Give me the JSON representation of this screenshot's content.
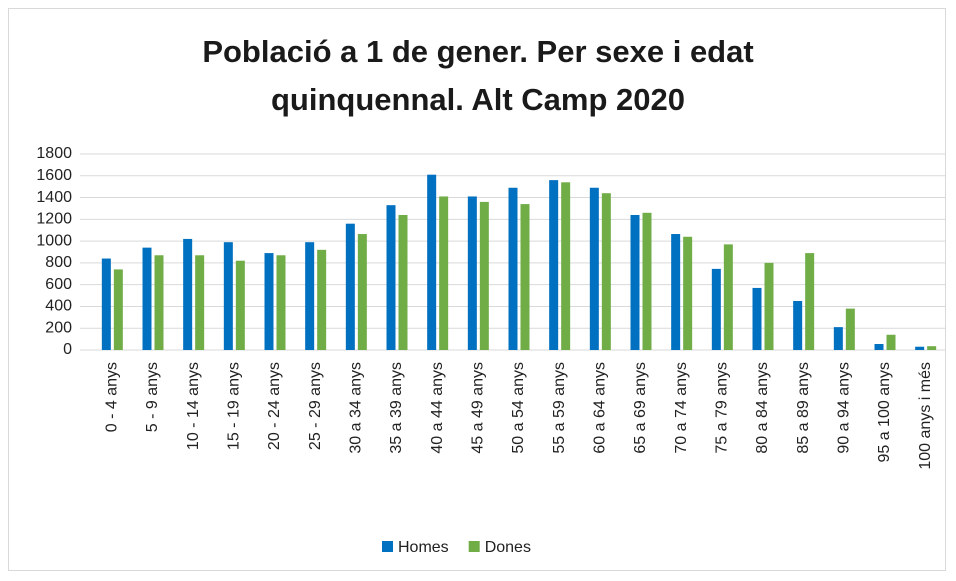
{
  "chart_data": {
    "type": "bar",
    "title": "Població a 1 de gener. Per sexe i edat quinquennal. Alt Camp 2020",
    "categories": [
      "0 - 4 anys",
      "5 - 9 anys",
      "10 - 14 anys",
      "15 - 19 anys",
      "20 - 24 anys",
      "25 - 29 anys",
      "30 a 34 anys",
      "35 a 39 anys",
      "40 a 44 anys",
      "45 a 49 anys",
      "50 a 54 anys",
      "55 a 59 anys",
      "60 a 64 anys",
      "65 a 69 anys",
      "70 a 74 anys",
      "75 a 79 anys",
      "80 a 84 anys",
      "85 a 89 anys",
      "90 a 94 anys",
      "95 a 100 anys",
      "100 anys i més"
    ],
    "series": [
      {
        "name": "Homes",
        "color": "#0070c0",
        "values": [
          840,
          940,
          1020,
          990,
          890,
          990,
          1160,
          1330,
          1610,
          1410,
          1490,
          1560,
          1490,
          1240,
          1065,
          745,
          570,
          450,
          210,
          55,
          30
        ]
      },
      {
        "name": "Dones",
        "color": "#70ad47",
        "values": [
          740,
          870,
          870,
          820,
          870,
          920,
          1065,
          1240,
          1410,
          1360,
          1340,
          1540,
          1440,
          1260,
          1040,
          970,
          800,
          890,
          380,
          140,
          35
        ]
      }
    ],
    "ylim": [
      0,
      1800
    ],
    "yticks": [
      0,
      200,
      400,
      600,
      800,
      1000,
      1200,
      1400,
      1600,
      1800
    ],
    "grid": true,
    "legend": "bottom"
  }
}
